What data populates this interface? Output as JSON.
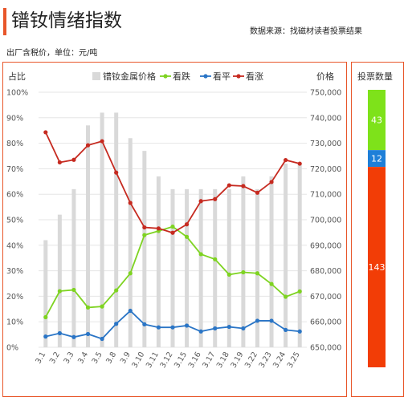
{
  "header": {
    "title": "镨钕情绪指数",
    "source": "数据来源：找磁材读者投票结果",
    "unit_note": "出厂含税价，单位：元/吨"
  },
  "colors": {
    "accent": "#e8562a",
    "bars": "#d9d9d9",
    "fall": "#7ed321",
    "flat": "#2a75c6",
    "rise": "#c62a20",
    "vote_rise": "#f23d06",
    "vote_flat": "#1e7fd8",
    "vote_fall": "#7ee21a"
  },
  "chart_data": [
    {
      "type": "bar+line",
      "left_axis_label": "占比",
      "right_axis_label": "价格",
      "categories": [
        "3.1",
        "3.2",
        "3.3",
        "3.4",
        "3.5",
        "3.8",
        "3.9",
        "3.10",
        "3.11",
        "3.12",
        "3.15",
        "3.16",
        "3.17",
        "3.18",
        "3.19",
        "3.22",
        "3.23",
        "3.24",
        "3.25"
      ],
      "left_ylim": [
        0,
        100
      ],
      "left_ticks": [
        "0%",
        "10%",
        "20%",
        "30%",
        "40%",
        "50%",
        "60%",
        "70%",
        "80%",
        "90%",
        "100%"
      ],
      "right_ylim": [
        650000,
        750000
      ],
      "right_ticks": [
        "650,000",
        "660,000",
        "670,000",
        "680,000",
        "690,000",
        "700,000",
        "710,000",
        "720,000",
        "730,000",
        "740,000",
        "750,000"
      ],
      "grid": true,
      "legend_position": "top",
      "bar_series": {
        "name": "镨钕金属价格",
        "axis": "right",
        "values": [
          692000,
          702000,
          712000,
          737000,
          742000,
          742000,
          732000,
          727000,
          717000,
          712000,
          712000,
          712000,
          712000,
          712000,
          717000,
          712000,
          717000,
          722000,
          722000
        ]
      },
      "series": [
        {
          "name": "看跌",
          "axis": "left",
          "values": [
            11.8,
            22.0,
            22.5,
            15.6,
            16.0,
            22.3,
            29.0,
            44.0,
            45.6,
            47.3,
            43.3,
            36.5,
            34.5,
            28.5,
            29.4,
            29.0,
            24.8,
            19.8,
            21.9
          ]
        },
        {
          "name": "看平",
          "axis": "left",
          "values": [
            4.2,
            5.5,
            4.0,
            5.2,
            3.3,
            9.2,
            14.3,
            9.0,
            7.8,
            7.8,
            8.5,
            6.2,
            7.4,
            8.0,
            7.4,
            10.4,
            10.4,
            6.8,
            6.2
          ]
        },
        {
          "name": "看涨",
          "axis": "left",
          "values": [
            84.3,
            72.5,
            73.5,
            79.2,
            80.8,
            68.5,
            56.6,
            47.0,
            46.6,
            44.9,
            48.2,
            57.3,
            58.1,
            63.5,
            63.2,
            60.6,
            64.8,
            73.4,
            72.0
          ]
        }
      ]
    },
    {
      "type": "stacked-bar",
      "title": "投票数量",
      "segments": [
        {
          "name": "看跌",
          "value": 43
        },
        {
          "name": "看平",
          "value": 12
        },
        {
          "name": "看涨",
          "value": 143
        }
      ]
    }
  ]
}
